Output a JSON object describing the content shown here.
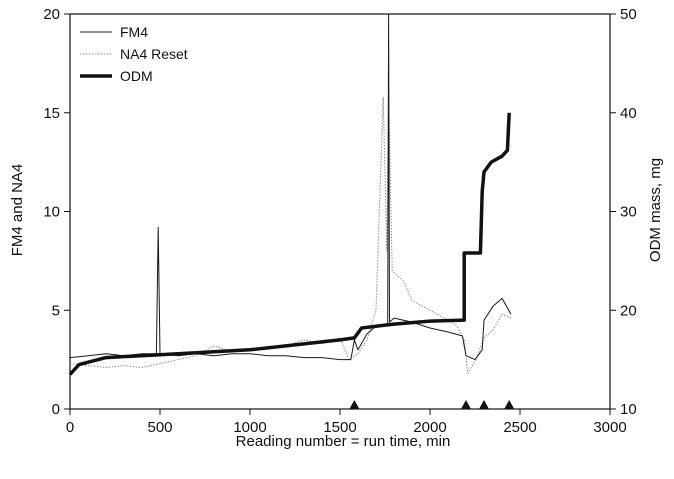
{
  "chart_data": {
    "type": "line",
    "title": "",
    "xlabel": "Reading number = run time, min",
    "ylabel_left": "FM4 and NA4",
    "ylabel_right": "ODM mass, mg",
    "xlim": [
      0,
      3000
    ],
    "ylim_left": [
      0,
      20
    ],
    "ylim_right": [
      10,
      50
    ],
    "x_ticks": [
      0,
      500,
      1000,
      1500,
      2000,
      2500,
      3000
    ],
    "y_left_ticks": [
      0,
      5,
      10,
      15,
      20
    ],
    "y_right_ticks": [
      10,
      20,
      30,
      40,
      50
    ],
    "grid": false,
    "legend_position": "top-left",
    "series": [
      {
        "name": "FM4",
        "axis": "left",
        "style": "thin-solid",
        "color": "#1a1a1a",
        "points": [
          [
            0,
            2.6
          ],
          [
            100,
            2.7
          ],
          [
            200,
            2.8
          ],
          [
            300,
            2.7
          ],
          [
            400,
            2.8
          ],
          [
            480,
            2.8
          ],
          [
            490,
            9.2
          ],
          [
            500,
            2.8
          ],
          [
            600,
            2.7
          ],
          [
            700,
            2.8
          ],
          [
            800,
            2.7
          ],
          [
            900,
            2.8
          ],
          [
            1000,
            2.8
          ],
          [
            1100,
            2.7
          ],
          [
            1200,
            2.7
          ],
          [
            1300,
            2.6
          ],
          [
            1400,
            2.6
          ],
          [
            1500,
            2.5
          ],
          [
            1560,
            2.5
          ],
          [
            1580,
            3.5
          ],
          [
            1600,
            3.0
          ],
          [
            1650,
            3.8
          ],
          [
            1700,
            4.2
          ],
          [
            1750,
            4.3
          ],
          [
            1765,
            4.2
          ],
          [
            1770,
            20.0
          ],
          [
            1775,
            4.4
          ],
          [
            1800,
            4.6
          ],
          [
            1900,
            4.4
          ],
          [
            2000,
            4.1
          ],
          [
            2100,
            3.9
          ],
          [
            2180,
            3.7
          ],
          [
            2200,
            2.7
          ],
          [
            2250,
            2.5
          ],
          [
            2290,
            3.0
          ],
          [
            2300,
            4.5
          ],
          [
            2350,
            5.2
          ],
          [
            2400,
            5.6
          ],
          [
            2450,
            4.8
          ]
        ]
      },
      {
        "name": "NA4 Reset",
        "axis": "left",
        "style": "thin-dotted",
        "color": "#8a8a8a",
        "points": [
          [
            0,
            2.3
          ],
          [
            100,
            2.2
          ],
          [
            200,
            2.1
          ],
          [
            300,
            2.2
          ],
          [
            400,
            2.1
          ],
          [
            500,
            2.3
          ],
          [
            600,
            2.5
          ],
          [
            700,
            2.7
          ],
          [
            800,
            3.2
          ],
          [
            900,
            2.9
          ],
          [
            1000,
            3.0
          ],
          [
            1100,
            3.1
          ],
          [
            1200,
            3.2
          ],
          [
            1300,
            3.5
          ],
          [
            1400,
            3.3
          ],
          [
            1500,
            3.6
          ],
          [
            1550,
            2.5
          ],
          [
            1600,
            2.8
          ],
          [
            1650,
            3.5
          ],
          [
            1700,
            5.0
          ],
          [
            1740,
            15.8
          ],
          [
            1760,
            8.0
          ],
          [
            1770,
            16.0
          ],
          [
            1790,
            7.0
          ],
          [
            1850,
            6.5
          ],
          [
            1900,
            5.5
          ],
          [
            2000,
            5.0
          ],
          [
            2100,
            4.5
          ],
          [
            2150,
            4.2
          ],
          [
            2190,
            3.5
          ],
          [
            2210,
            1.8
          ],
          [
            2260,
            2.6
          ],
          [
            2300,
            3.6
          ],
          [
            2350,
            4.0
          ],
          [
            2400,
            4.8
          ],
          [
            2450,
            4.6
          ]
        ]
      },
      {
        "name": "ODM",
        "axis": "right",
        "style": "thick-solid",
        "color": "#111111",
        "points": [
          [
            0,
            13.5
          ],
          [
            50,
            14.5
          ],
          [
            200,
            15.2
          ],
          [
            500,
            15.5
          ],
          [
            1000,
            16.0
          ],
          [
            1500,
            17.0
          ],
          [
            1580,
            17.2
          ],
          [
            1620,
            18.2
          ],
          [
            1800,
            18.6
          ],
          [
            2000,
            18.9
          ],
          [
            2190,
            19.0
          ],
          [
            2190,
            25.8
          ],
          [
            2280,
            25.8
          ],
          [
            2290,
            32.0
          ],
          [
            2300,
            34.0
          ],
          [
            2340,
            35.0
          ],
          [
            2400,
            35.6
          ],
          [
            2430,
            36.2
          ],
          [
            2440,
            40.0
          ]
        ]
      }
    ],
    "markers": {
      "shape": "triangle",
      "axis": "left",
      "y": 0,
      "x": [
        1580,
        2200,
        2300,
        2440
      ]
    }
  }
}
